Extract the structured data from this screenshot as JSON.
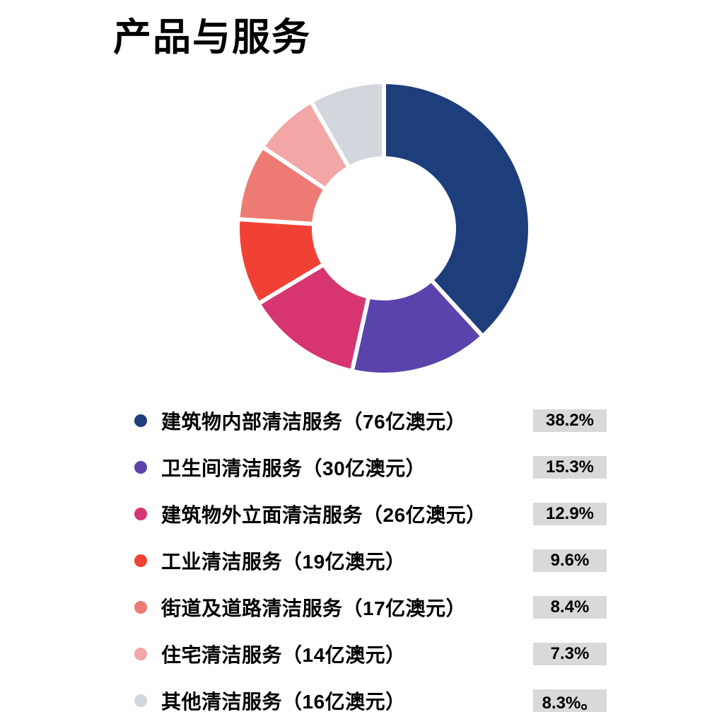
{
  "header": {
    "title": "产品与服务"
  },
  "colors": {
    "background": "#ffffff",
    "title_text": "#000000",
    "legend_text": "#000000",
    "percent_badge_bg": "#d9d9d9",
    "segment_divider": "#ffffff"
  },
  "chart_data": {
    "type": "pie",
    "title": "产品与服务",
    "donut": true,
    "start_angle_deg": 0,
    "direction": "clockwise",
    "inner_radius_ratio": 0.5,
    "grid": false,
    "legend_position": "bottom",
    "segments": [
      {
        "label": "建筑物内部清洁服务（76亿澳元）",
        "value_billions_aud": 76,
        "percent": 38.2,
        "percent_label": "38.2%",
        "color": "#1d3e7a"
      },
      {
        "label": "卫生间清洁服务（30亿澳元）",
        "value_billions_aud": 30,
        "percent": 15.3,
        "percent_label": "15.3%",
        "color": "#5a43ab"
      },
      {
        "label": "建筑物外立面清洁服务（26亿澳元）",
        "value_billions_aud": 26,
        "percent": 12.9,
        "percent_label": "12.9%",
        "color": "#d63572"
      },
      {
        "label": "工业清洁服务（19亿澳元）",
        "value_billions_aud": 19,
        "percent": 9.6,
        "percent_label": "9.6%",
        "color": "#f14134"
      },
      {
        "label": "街道及道路清洁服务（17亿澳元）",
        "value_billions_aud": 17,
        "percent": 8.4,
        "percent_label": "8.4%",
        "color": "#ee7a74"
      },
      {
        "label": "住宅清洁服务（14亿澳元）",
        "value_billions_aud": 14,
        "percent": 7.3,
        "percent_label": "7.3%",
        "color": "#f2a6a6"
      },
      {
        "label": "其他清洁服务（16亿澳元）",
        "value_billions_aud": 16,
        "percent": 8.3,
        "percent_label": "8.3%。",
        "color": "#d2d7de"
      }
    ]
  }
}
